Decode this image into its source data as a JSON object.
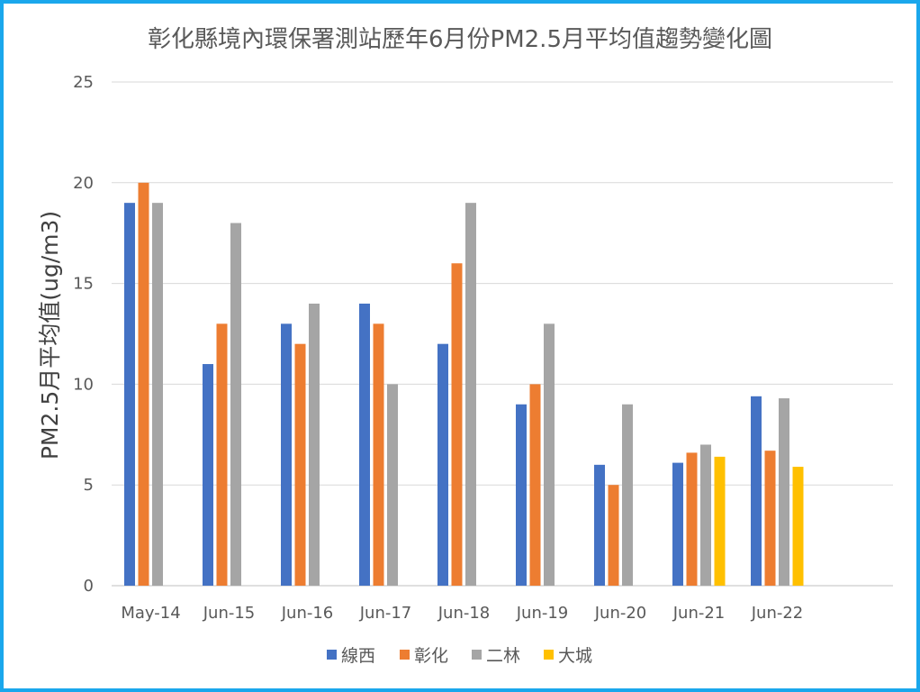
{
  "chart_data": {
    "type": "bar",
    "title": "彰化縣境內環保署測站歷年6月份PM2.5月平均值趨勢變化圖",
    "ylabel": "PM2.5月平均值(ug/m3)",
    "xlabel": "",
    "ylim": [
      0,
      25
    ],
    "yticks": [
      0,
      5,
      10,
      15,
      20,
      25
    ],
    "grid": true,
    "legend_position": "bottom",
    "categories": [
      "May-14",
      "Jun-15",
      "Jun-16",
      "Jun-17",
      "Jun-18",
      "Jun-19",
      "Jun-20",
      "Jun-21",
      "Jun-22"
    ],
    "series": [
      {
        "name": "線西",
        "color": "#4472c4",
        "values": [
          19,
          11,
          13,
          14,
          12,
          9,
          6,
          6.1,
          9.4
        ]
      },
      {
        "name": "彰化",
        "color": "#ed7d31",
        "values": [
          20,
          13,
          12,
          13,
          16,
          10,
          5,
          6.6,
          6.7
        ]
      },
      {
        "name": "二林",
        "color": "#a5a5a5",
        "values": [
          19,
          18,
          14,
          10,
          19,
          13,
          9,
          7,
          9.3
        ]
      },
      {
        "name": "大城",
        "color": "#ffc000",
        "values": [
          null,
          null,
          null,
          null,
          null,
          null,
          null,
          6.4,
          5.9
        ]
      }
    ]
  }
}
